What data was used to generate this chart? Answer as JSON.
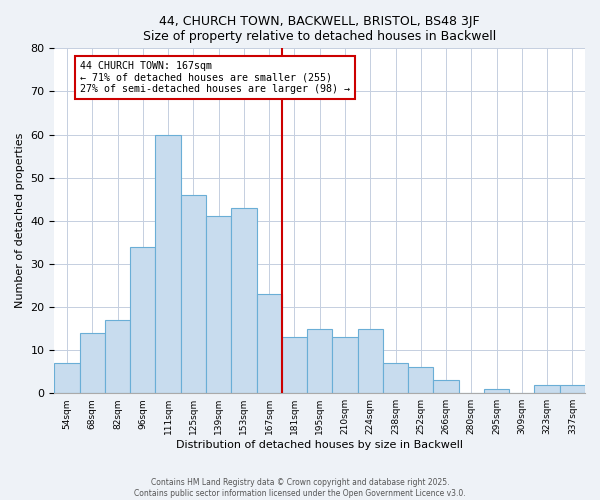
{
  "title": "44, CHURCH TOWN, BACKWELL, BRISTOL, BS48 3JF",
  "subtitle": "Size of property relative to detached houses in Backwell",
  "xlabel": "Distribution of detached houses by size in Backwell",
  "ylabel": "Number of detached properties",
  "bin_labels": [
    "54sqm",
    "68sqm",
    "82sqm",
    "96sqm",
    "111sqm",
    "125sqm",
    "139sqm",
    "153sqm",
    "167sqm",
    "181sqm",
    "195sqm",
    "210sqm",
    "224sqm",
    "238sqm",
    "252sqm",
    "266sqm",
    "280sqm",
    "295sqm",
    "309sqm",
    "323sqm",
    "337sqm"
  ],
  "bar_values": [
    7,
    14,
    17,
    34,
    60,
    46,
    41,
    43,
    23,
    13,
    15,
    13,
    15,
    7,
    6,
    3,
    0,
    1,
    0,
    2,
    2
  ],
  "bar_color": "#c8dcee",
  "bar_edge_color": "#6aaed6",
  "marker_bin_index": 8,
  "marker_line_color": "#cc0000",
  "annotation_title": "44 CHURCH TOWN: 167sqm",
  "annotation_line1": "← 71% of detached houses are smaller (255)",
  "annotation_line2": "27% of semi-detached houses are larger (98) →",
  "annotation_box_edge_color": "#cc0000",
  "ylim": [
    0,
    80
  ],
  "yticks": [
    0,
    10,
    20,
    30,
    40,
    50,
    60,
    70,
    80
  ],
  "footer1": "Contains HM Land Registry data © Crown copyright and database right 2025.",
  "footer2": "Contains public sector information licensed under the Open Government Licence v3.0.",
  "bg_color": "#eef2f7",
  "plot_bg_color": "#ffffff",
  "grid_color": "#c5cfe0"
}
